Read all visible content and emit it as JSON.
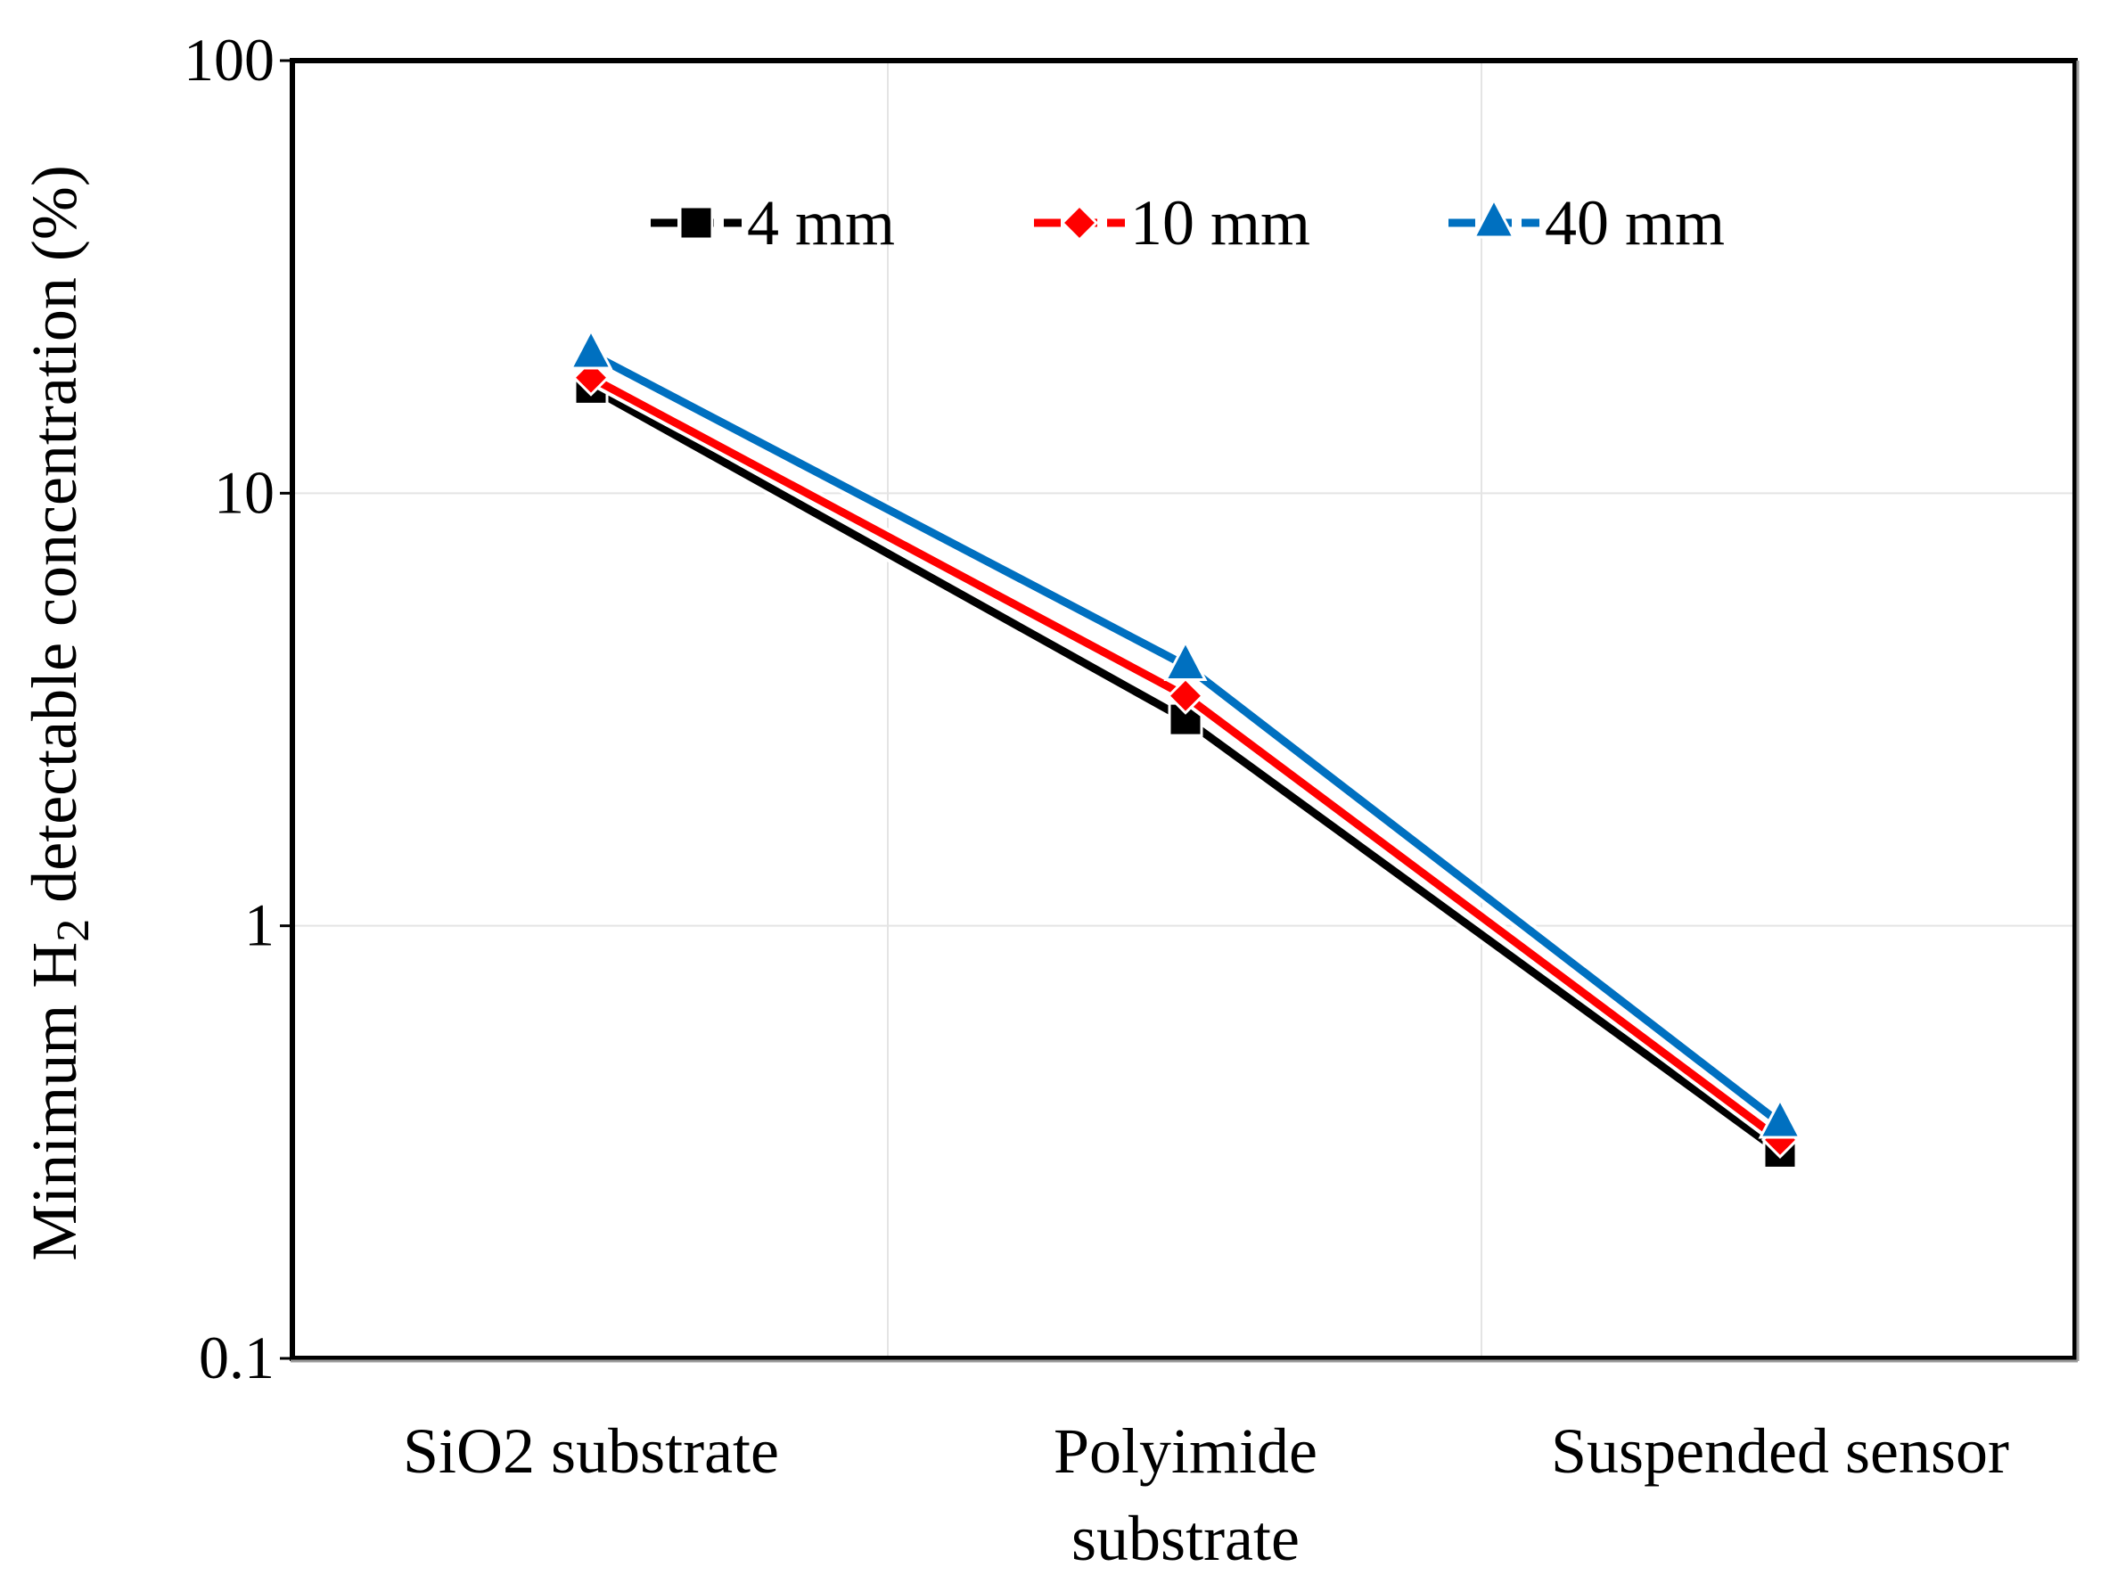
{
  "chart_data": {
    "type": "line",
    "title": "",
    "xlabel": "",
    "ylabel": {
      "prefix": "Minimum H",
      "subscript": "2",
      "suffix": " detectable concentration (%)"
    },
    "y_scale": "log",
    "ylim": [
      0.1,
      100
    ],
    "y_ticks": [
      {
        "value": 100,
        "label": "100"
      },
      {
        "value": 10,
        "label": "10"
      },
      {
        "value": 1,
        "label": "1"
      },
      {
        "value": 0.1,
        "label": "0.1"
      }
    ],
    "categories": [
      {
        "lines": [
          "SiO2 substrate"
        ]
      },
      {
        "lines": [
          "Polyimide",
          "substrate"
        ]
      },
      {
        "lines": [
          "Suspended sensor"
        ]
      }
    ],
    "grid": true,
    "legend_position": "top",
    "series": [
      {
        "name": "4 mm",
        "marker": "square",
        "color": "#000000",
        "values": [
          17.5,
          3.0,
          0.3
        ]
      },
      {
        "name": "10 mm",
        "marker": "diamond",
        "color": "#ff0000",
        "values": [
          18.5,
          3.4,
          0.32
        ]
      },
      {
        "name": "40 mm",
        "marker": "triangle",
        "color": "#0070c0",
        "values": [
          21.0,
          4.0,
          0.35
        ]
      }
    ]
  }
}
